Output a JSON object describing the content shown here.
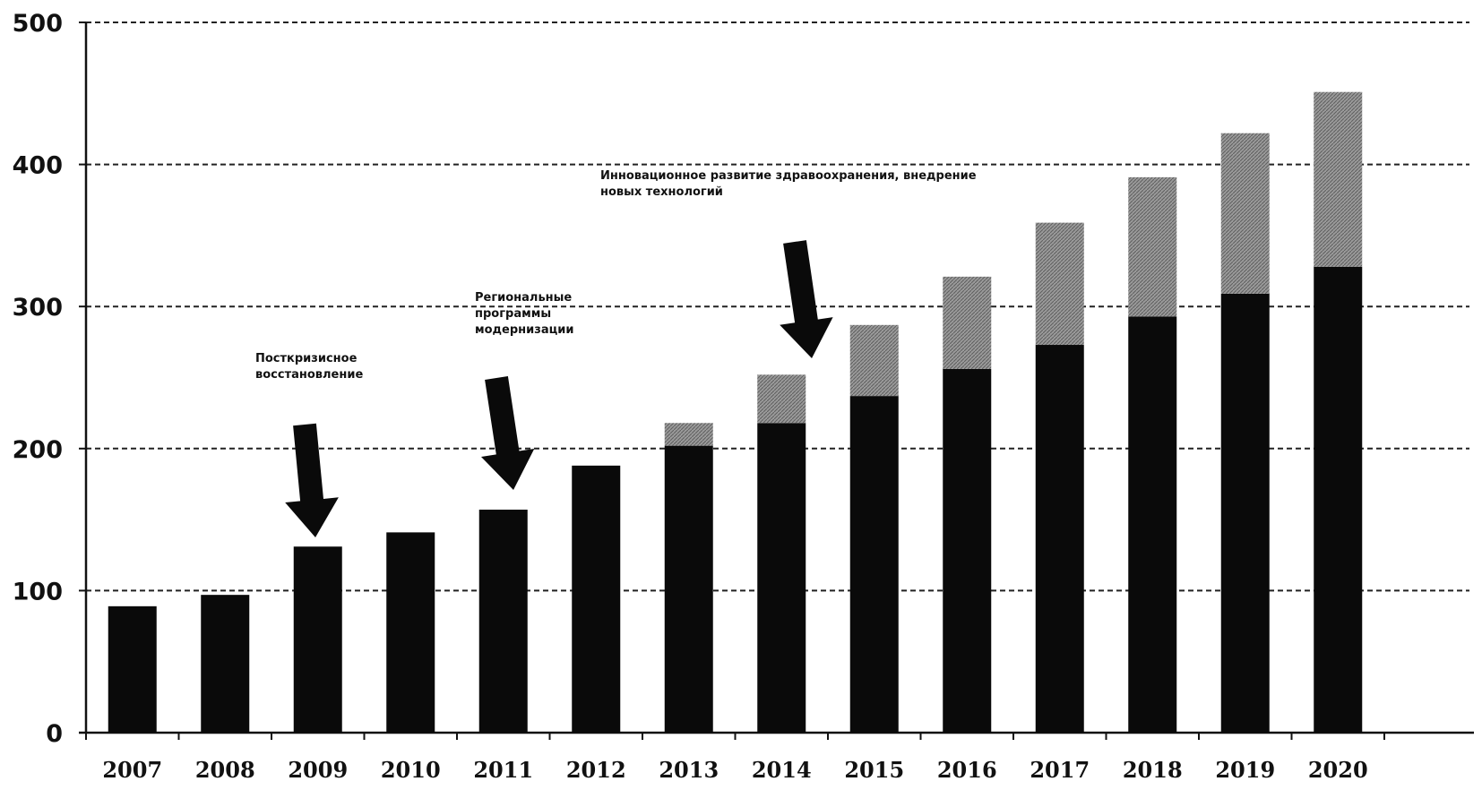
{
  "chart_data": {
    "type": "bar",
    "stacked": true,
    "title": "",
    "xlabel": "",
    "ylabel": "",
    "ylim": [
      0,
      500
    ],
    "yticks": [
      "0",
      "100",
      "200",
      "300",
      "400",
      "500"
    ],
    "grid": "horizontal-dashed",
    "categories": [
      "2007",
      "2008",
      "2009",
      "2010",
      "2011",
      "2012",
      "2013",
      "2014",
      "2015",
      "2016",
      "2017",
      "2018",
      "2019",
      "2020"
    ],
    "series": [
      {
        "color": "#0a0a0a",
        "values": [
          89,
          97,
          131,
          141,
          157,
          188,
          202,
          218,
          237,
          256,
          273,
          293,
          309,
          328
        ]
      },
      {
        "color": "#8c8c8c",
        "values": [
          0,
          0,
          0,
          0,
          0,
          0,
          16,
          34,
          50,
          65,
          86,
          98,
          113,
          123
        ]
      }
    ],
    "annotations": [
      {
        "text": [
          "Посткризисное",
          "восстановление"
        ],
        "year": "2009"
      },
      {
        "text": [
          "Региональные",
          "программы",
          "модернизации"
        ],
        "year": "2011"
      },
      {
        "text": [
          "Инновационное развитие здравоохранения, внедрение",
          "новых технологий"
        ],
        "year": "2014"
      }
    ]
  }
}
